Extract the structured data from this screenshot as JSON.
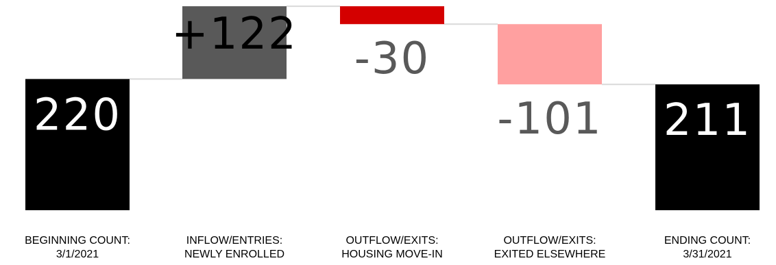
{
  "chart_data": {
    "type": "waterfall",
    "categories": [
      [
        "BEGINNING COUNT:",
        "3/1/2021"
      ],
      [
        "INFLOW/ENTRIES:",
        "NEWLY ENROLLED"
      ],
      [
        "OUTFLOW/EXITS:",
        "HOUSING MOVE-IN"
      ],
      [
        "OUTFLOW/EXITS:",
        "EXITED ELSEWHERE"
      ],
      [
        "ENDING COUNT:",
        "3/31/2021"
      ]
    ],
    "values": [
      220,
      122,
      -30,
      -101,
      211
    ],
    "value_labels": [
      "220",
      "+122",
      "-30",
      "-101",
      "211"
    ],
    "kinds": [
      "total",
      "increase",
      "decrease",
      "decrease",
      "total"
    ],
    "colors": [
      "#000000",
      "#595959",
      "#d40000",
      "#ffa0a0",
      "#000000"
    ],
    "label_colors": [
      "#ffffff",
      "#000000",
      "#595959",
      "#595959",
      "#ffffff"
    ],
    "connector_color": "#d9d9d9",
    "ylim": [
      0,
      342
    ]
  }
}
